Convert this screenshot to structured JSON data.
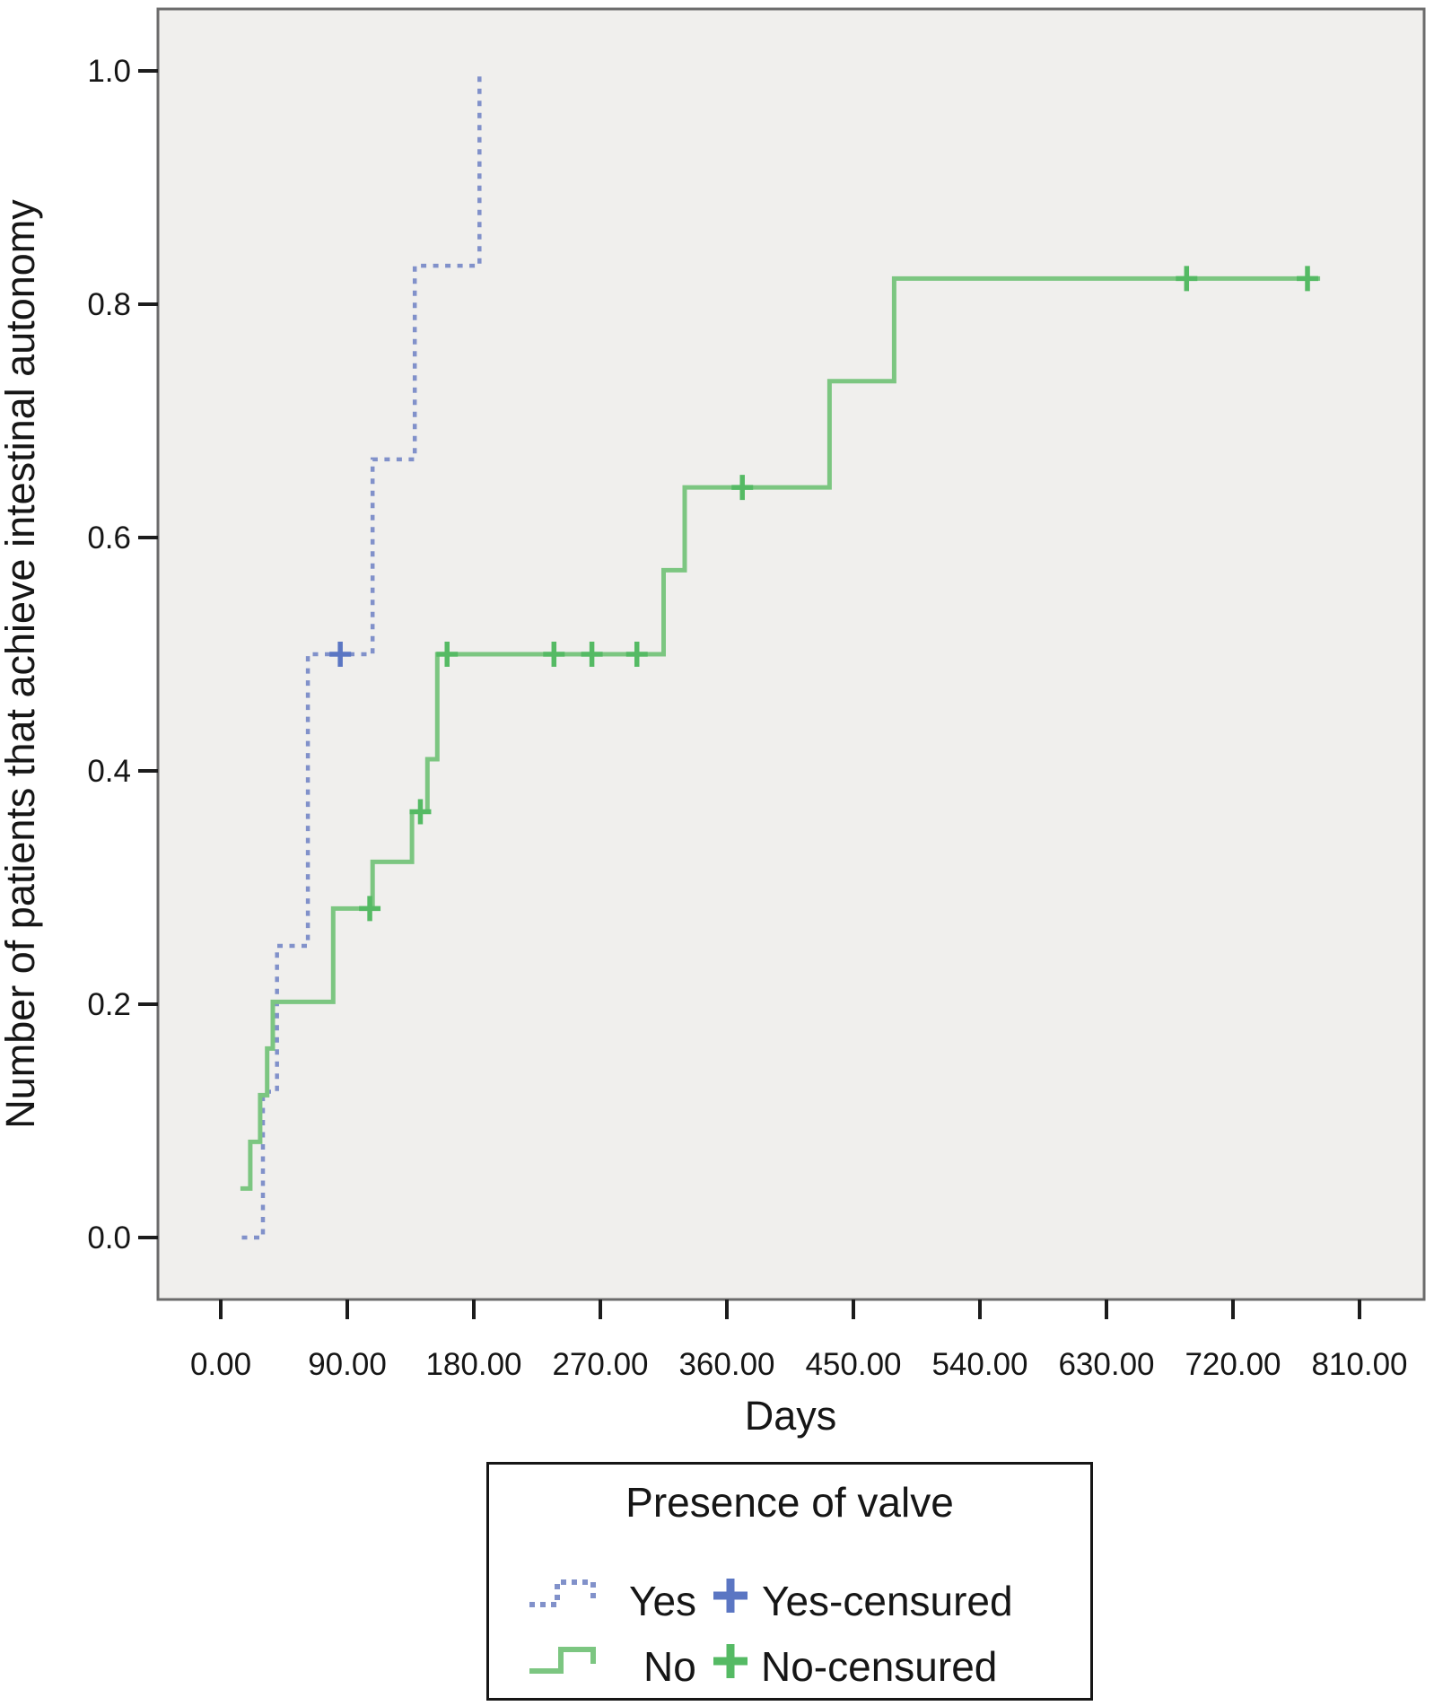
{
  "axes": {
    "x": {
      "title": "Days",
      "min": 0,
      "max": 810,
      "tick_labels": [
        "0.00",
        "90.00",
        "180.00",
        "270.00",
        "360.00",
        "450.00",
        "540.00",
        "630.00",
        "720.00",
        "810.00"
      ]
    },
    "y": {
      "title": "Number of patients that achieve intestinal autonomy",
      "min": 0.0,
      "max": 1.0,
      "tick_labels": [
        "0.0",
        "0.2",
        "0.4",
        "0.6",
        "0.8",
        "1.0"
      ]
    }
  },
  "legend": {
    "title": "Presence of valve",
    "items": [
      {
        "label": "Yes",
        "censored_label": "Yes-censured",
        "color": "#8191ca",
        "censor_color": "#5b76c3",
        "style": "dashed"
      },
      {
        "label": "No",
        "censored_label": "No-censured",
        "color": "#7cc681",
        "censor_color": "#55ba64",
        "style": "solid"
      }
    ]
  },
  "colors": {
    "plot_background": "#f0efed",
    "plot_border": "#6b6b6b",
    "tick": "#1c1c1c",
    "yes_line": "#8191ca",
    "yes_censor": "#5b76c3",
    "no_line": "#7cc681",
    "no_censor": "#55ba64"
  },
  "chart_data": {
    "type": "line",
    "subtype": "kaplan-meier-step",
    "title": "",
    "xlabel": "Days",
    "ylabel": "Number of patients that achieve intestinal autonomy",
    "xlim": [
      0,
      810
    ],
    "ylim": [
      0.0,
      1.0
    ],
    "grid": false,
    "legend_position": "bottom",
    "x_tick_labels": [
      "0.00",
      "90.00",
      "180.00",
      "270.00",
      "360.00",
      "450.00",
      "540.00",
      "630.00",
      "720.00",
      "810.00"
    ],
    "y_tick_labels": [
      "0.0",
      "0.2",
      "0.4",
      "0.6",
      "0.8",
      "1.0"
    ],
    "series": [
      {
        "name": "Yes",
        "color": "#8191ca",
        "dash": "6 7.5",
        "line_width": 4.5,
        "points": [
          [
            15,
            0
          ],
          [
            30,
            0
          ],
          [
            30,
            0.125
          ],
          [
            40,
            0.125
          ],
          [
            40,
            0.25
          ],
          [
            62,
            0.25
          ],
          [
            62,
            0.5
          ],
          [
            108,
            0.5
          ],
          [
            108,
            0.667
          ],
          [
            138,
            0.667
          ],
          [
            138,
            0.833
          ],
          [
            184,
            0.833
          ],
          [
            184,
            1.0
          ]
        ],
        "censored": [
          [
            85,
            0.5
          ]
        ],
        "censor_color": "#5b76c3"
      },
      {
        "name": "No",
        "color": "#7cc681",
        "dash": null,
        "line_width": 5,
        "points": [
          [
            14,
            0.042
          ],
          [
            21,
            0.042
          ],
          [
            21,
            0.082
          ],
          [
            28,
            0.082
          ],
          [
            28,
            0.122
          ],
          [
            33,
            0.122
          ],
          [
            33,
            0.162
          ],
          [
            37,
            0.162
          ],
          [
            37,
            0.202
          ],
          [
            80,
            0.202
          ],
          [
            80,
            0.282
          ],
          [
            108,
            0.282
          ],
          [
            108,
            0.322
          ],
          [
            136,
            0.322
          ],
          [
            136,
            0.365
          ],
          [
            147,
            0.365
          ],
          [
            147,
            0.41
          ],
          [
            154,
            0.41
          ],
          [
            154,
            0.5
          ],
          [
            315,
            0.5
          ],
          [
            315,
            0.572
          ],
          [
            330,
            0.572
          ],
          [
            330,
            0.643
          ],
          [
            433,
            0.643
          ],
          [
            433,
            0.734
          ],
          [
            479,
            0.734
          ],
          [
            479,
            0.822
          ],
          [
            782,
            0.822
          ]
        ],
        "censored": [
          [
            106,
            0.282
          ],
          [
            142,
            0.365
          ],
          [
            161,
            0.5
          ],
          [
            237,
            0.5
          ],
          [
            264,
            0.5
          ],
          [
            296,
            0.5
          ],
          [
            371,
            0.643
          ],
          [
            687,
            0.822
          ],
          [
            773,
            0.822
          ]
        ],
        "censor_color": "#55ba64"
      }
    ]
  }
}
